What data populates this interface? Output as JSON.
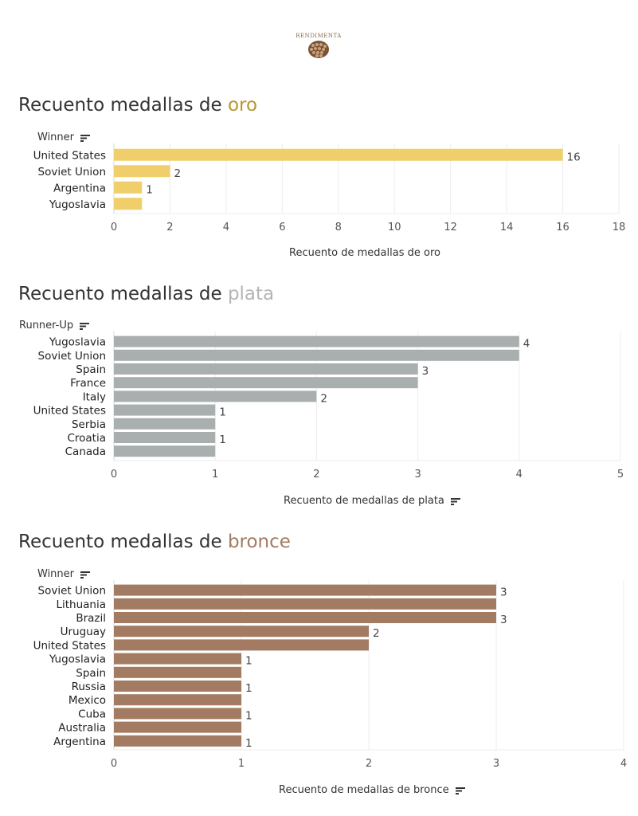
{
  "colors": {
    "gold": "#f0cf6a",
    "silver": "#a9afae",
    "bronze": "#a37b62",
    "gold_text": "#b8962e",
    "silver_text": "#b5b5b5",
    "bronze_text": "#a37b62"
  },
  "logo": {
    "icon": "pinecone-logo-icon",
    "text": "RENDIMENTA"
  },
  "sections": [
    {
      "title_prefix": "Recuento medallas de ",
      "title_accent": "oro",
      "row_header": "Winner",
      "axis_title": "Recuento de medallas de oro"
    },
    {
      "title_prefix": "Recuento medallas de ",
      "title_accent": "plata",
      "row_header": "Runner-Up",
      "axis_title": "Recuento de medallas de plata"
    },
    {
      "title_prefix": "Recuento medallas de ",
      "title_accent": "bronce",
      "row_header": "Winner",
      "axis_title": "Recuento de medallas de bronce"
    }
  ],
  "chart_data": [
    {
      "type": "bar",
      "orientation": "horizontal",
      "title": "Recuento medallas de oro",
      "categories": [
        "United States",
        "Soviet Union",
        "Argentina",
        "Yugoslavia"
      ],
      "values": [
        16,
        2,
        1,
        1
      ],
      "labels": [
        "16",
        "2",
        "1",
        ""
      ],
      "xlabel": "Recuento de medallas de oro",
      "ylabel": "Winner",
      "xlim": [
        0,
        18
      ],
      "ticks": [
        0,
        2,
        4,
        6,
        8,
        10,
        12,
        14,
        16,
        18
      ]
    },
    {
      "type": "bar",
      "orientation": "horizontal",
      "title": "Recuento medallas de plata",
      "categories": [
        "Yugoslavia",
        "Soviet Union",
        "Spain",
        "France",
        "Italy",
        "United States",
        "Serbia",
        "Croatia",
        "Canada"
      ],
      "values": [
        4,
        4,
        3,
        3,
        2,
        1,
        1,
        1,
        1
      ],
      "labels": [
        "4",
        "",
        "3",
        "",
        "2",
        "1",
        "",
        "1",
        ""
      ],
      "xlabel": "Recuento de medallas de plata",
      "ylabel": "Runner-Up",
      "xlim": [
        0,
        5
      ],
      "ticks": [
        0,
        1,
        2,
        3,
        4,
        5
      ]
    },
    {
      "type": "bar",
      "orientation": "horizontal",
      "title": "Recuento medallas de bronce",
      "categories": [
        "Soviet Union",
        "Lithuania",
        "Brazil",
        "Uruguay",
        "United States",
        "Yugoslavia",
        "Spain",
        "Russia",
        "Mexico",
        "Cuba",
        "Australia",
        "Argentina"
      ],
      "values": [
        3,
        3,
        3,
        2,
        2,
        1,
        1,
        1,
        1,
        1,
        1,
        1
      ],
      "labels": [
        "3",
        "",
        "3",
        "2",
        "",
        "1",
        "",
        "1",
        "",
        "1",
        "",
        "1"
      ],
      "xlabel": "Recuento de medallas de bronce",
      "ylabel": "Winner",
      "xlim": [
        0,
        4
      ],
      "ticks": [
        0,
        1,
        2,
        3,
        4
      ]
    }
  ]
}
